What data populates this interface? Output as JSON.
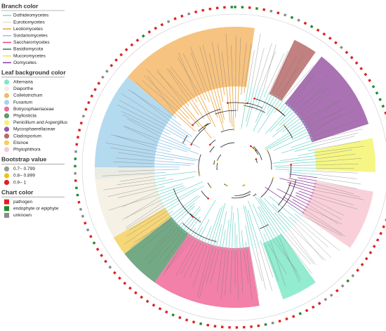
{
  "legend": {
    "branch": {
      "title": "Branch color",
      "items": [
        {
          "label": "Dothideomycetes",
          "color": "#7fd8cf"
        },
        {
          "label": "Eurotiomycetes",
          "color": "#e0e0e0"
        },
        {
          "label": "Leotiomycetes",
          "color": "#e8a33d"
        },
        {
          "label": "Sordariomycetes",
          "color": "#8fc3e6"
        },
        {
          "label": "Saccharomycetes",
          "color": "#e0457a"
        },
        {
          "label": "Basidiomycota",
          "color": "#2f7a4f"
        },
        {
          "label": "Mucoromycetes",
          "color": "#f0e040"
        },
        {
          "label": "Oomycetes",
          "color": "#8a3a9e"
        }
      ]
    },
    "leaf": {
      "title": "Leaf background color",
      "items": [
        {
          "label": "Alternaria",
          "color": "#80e8c8"
        },
        {
          "label": "Diaporthe",
          "color": "#f3eee0"
        },
        {
          "label": "Colletotrichum",
          "color": "#f5b86a"
        },
        {
          "label": "Fusarium",
          "color": "#a7d3ec"
        },
        {
          "label": "Botryosphaeriaceae",
          "color": "#f06a9a"
        },
        {
          "label": "Phyllosticta",
          "color": "#5a9a70"
        },
        {
          "label": "Penicillium and Aspergillus",
          "color": "#f5f570"
        },
        {
          "label": "Mycosphaerellaceae",
          "color": "#9b59a6"
        },
        {
          "label": "Cladosporium",
          "color": "#b86a6a"
        },
        {
          "label": "Elsinoe",
          "color": "#f5d060"
        },
        {
          "label": "Phytophthora",
          "color": "#f8c8d4"
        }
      ]
    },
    "bootstrap": {
      "title": "Bootstrap value",
      "items": [
        {
          "label": "0.7~ 0.799",
          "color": "#9a9a9a"
        },
        {
          "label": "0.8~ 0.899",
          "color": "#f0c020"
        },
        {
          "label": "0.9~ 1",
          "color": "#e02020"
        }
      ]
    },
    "chart": {
      "title": "Chart color",
      "items": [
        {
          "label": "pathogen",
          "color": "#e02020"
        },
        {
          "label": "endophyte or epiphyte",
          "color": "#1f8a2f"
        },
        {
          "label": "unknown",
          "color": "#8a8a8a"
        }
      ]
    }
  }
}
